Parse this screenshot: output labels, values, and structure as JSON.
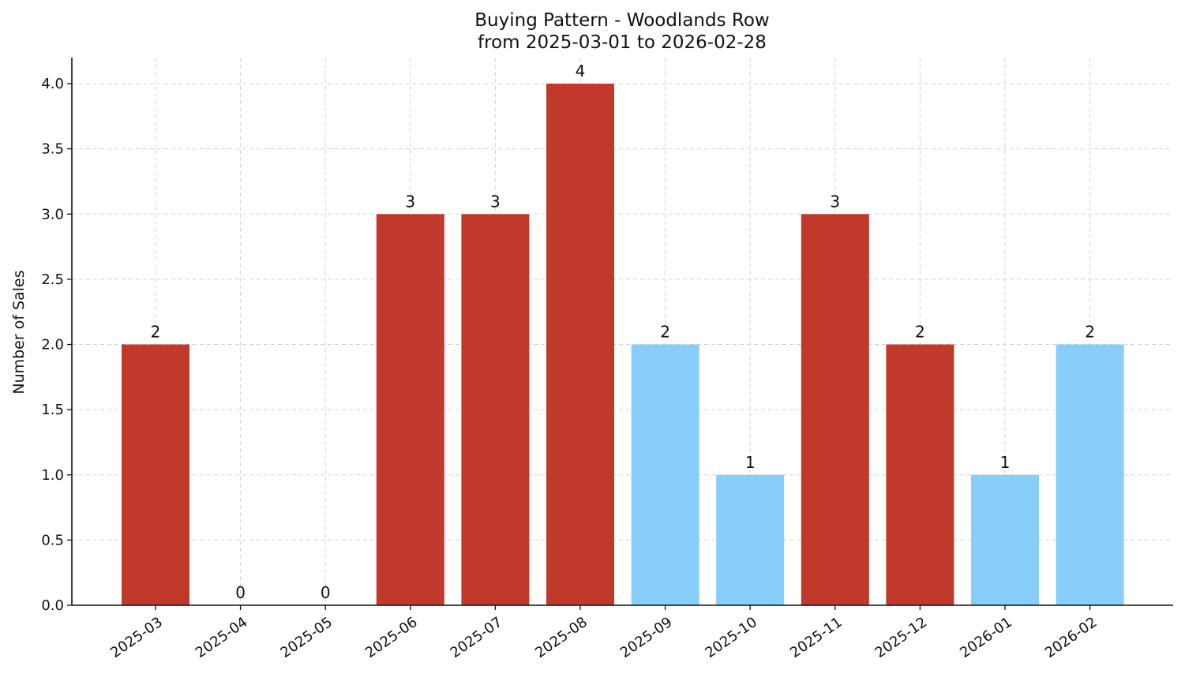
{
  "chart_data": {
    "type": "bar",
    "title": "Buying Pattern - Woodlands Row",
    "subtitle": "from 2025-03-01 to 2026-02-28",
    "xlabel": "",
    "ylabel": "Number of Sales",
    "categories": [
      "2025-03",
      "2025-04",
      "2025-05",
      "2025-06",
      "2025-07",
      "2025-08",
      "2025-09",
      "2025-10",
      "2025-11",
      "2025-12",
      "2026-01",
      "2026-02"
    ],
    "values": [
      2,
      0,
      0,
      3,
      3,
      4,
      2,
      1,
      3,
      2,
      1,
      2
    ],
    "bar_colors": [
      "#c0392b",
      "#c0392b",
      "#c0392b",
      "#c0392b",
      "#c0392b",
      "#c0392b",
      "#87cefa",
      "#87cefa",
      "#c0392b",
      "#c0392b",
      "#87cefa",
      "#87cefa"
    ],
    "y_ticks": [
      "0.0",
      "0.5",
      "1.0",
      "1.5",
      "2.0",
      "2.5",
      "3.0",
      "3.5",
      "4.0"
    ],
    "ylim": [
      0,
      4.2
    ],
    "grid": true
  }
}
